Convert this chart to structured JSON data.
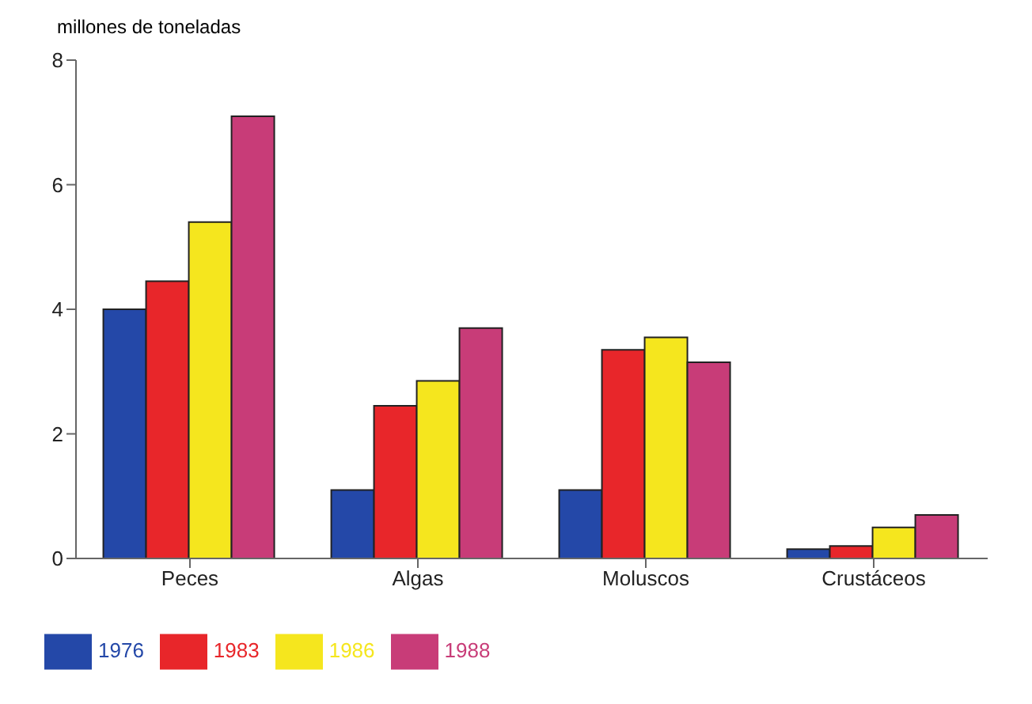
{
  "chart_data": {
    "type": "bar",
    "ylabel": "millones de toneladas",
    "categories": [
      "Peces",
      "Algas",
      "Moluscos",
      "Crustáceos"
    ],
    "series": [
      {
        "name": "1976",
        "color": "#2448a8",
        "values": [
          4.0,
          1.1,
          1.1,
          0.15
        ]
      },
      {
        "name": "1983",
        "color": "#e8262a",
        "values": [
          4.45,
          2.45,
          3.35,
          0.2
        ]
      },
      {
        "name": "1986",
        "color": "#f5e61e",
        "values": [
          5.4,
          2.85,
          3.55,
          0.5
        ]
      },
      {
        "name": "1988",
        "color": "#c83c78",
        "values": [
          7.1,
          3.7,
          3.15,
          0.7
        ]
      }
    ],
    "ylim": [
      0,
      8
    ],
    "yticks": [
      0,
      2,
      4,
      6,
      8
    ],
    "grid": false,
    "legend": "bottom left"
  }
}
